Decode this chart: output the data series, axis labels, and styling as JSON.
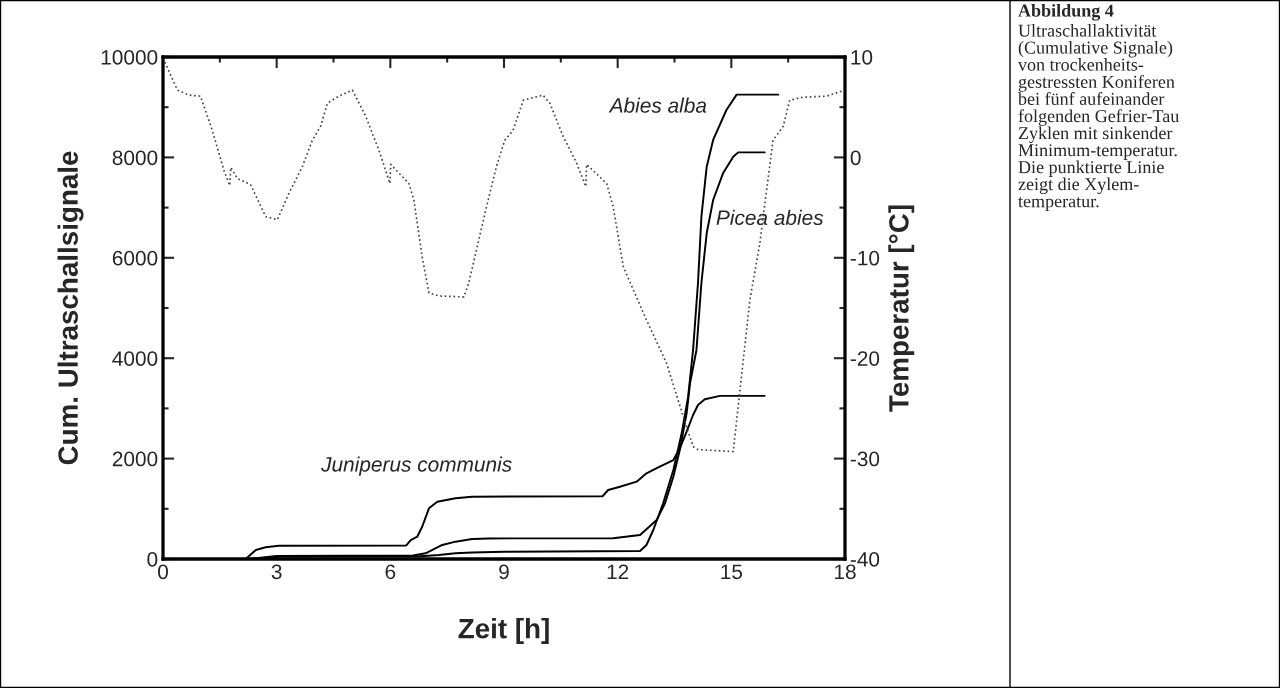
{
  "chart_data": {
    "type": "line",
    "xlabel": "Zeit [h]",
    "ylabel": "Cum. Ultraschallsignale",
    "y2label": "Temperatur [°C]",
    "xlim": [
      0,
      18
    ],
    "xticks": [
      0,
      3,
      6,
      9,
      12,
      15,
      18
    ],
    "ylim": [
      0,
      10000
    ],
    "yticks": [
      0,
      2000,
      4000,
      6000,
      8000,
      10000
    ],
    "y2lim": [
      -40,
      10
    ],
    "y2ticks": [
      -40,
      -30,
      -20,
      -10,
      0,
      10
    ],
    "grid": false,
    "legend": false,
    "line_style": "solid",
    "marker": "none",
    "series": [
      {
        "name": "Abies alba",
        "color": "#000000",
        "x": [
          0,
          2.3,
          3.0,
          6.7,
          7.28,
          7.72,
          8.16,
          9.0,
          12.59,
          12.76,
          12.94,
          13.2,
          13.47,
          13.69,
          13.86,
          13.99,
          14.12,
          14.21,
          14.35,
          14.52,
          14.87,
          15.14,
          16.24
        ],
        "values": [
          0,
          0,
          46,
          50,
          80,
          113,
          130,
          145,
          160,
          279,
          578,
          1110,
          1773,
          2504,
          3233,
          4163,
          5498,
          6819,
          7815,
          8347,
          8944,
          9250,
          9250
        ]
      },
      {
        "name": "Picea abies",
        "color": "#000000",
        "x": [
          0,
          2.3,
          3.0,
          6.6,
          6.93,
          7.37,
          7.72,
          8.16,
          8.6,
          11.88,
          12.59,
          13.03,
          13.25,
          13.47,
          13.64,
          13.82,
          13.91,
          14.08,
          14.21,
          14.35,
          14.52,
          14.78,
          15.05,
          15.18,
          15.88
        ],
        "values": [
          0,
          0,
          60,
          70,
          113,
          279,
          345,
          400,
          410,
          412,
          478,
          777,
          1110,
          1640,
          2171,
          2902,
          3500,
          4163,
          5498,
          6488,
          7151,
          7683,
          8015,
          8100,
          8100
        ]
      },
      {
        "name": "Juniperus communis",
        "color": "#000000",
        "x": [
          0,
          2.18,
          2.45,
          2.71,
          3.06,
          6.42,
          6.54,
          6.71,
          6.84,
          7.02,
          7.24,
          7.72,
          8.16,
          11.6,
          11.75,
          12.06,
          12.5,
          12.76,
          13.11,
          13.47,
          13.64,
          13.82,
          13.99,
          14.12,
          14.3,
          14.7,
          15.88
        ],
        "values": [
          0,
          0,
          179,
          233,
          265,
          270,
          378,
          444,
          643,
          1010,
          1141,
          1209,
          1241,
          1250,
          1375,
          1440,
          1540,
          1707,
          1839,
          1972,
          2205,
          2536,
          2869,
          3068,
          3181,
          3250,
          3250
        ]
      },
      {
        "axis": "y2",
        "color": "#444444",
        "line_style": "dotted",
        "x": [
          0,
          0.38,
          0.69,
          0.99,
          1.3,
          1.61,
          1.76,
          1.79,
          1.96,
          2.31,
          2.71,
          3.02,
          3.32,
          3.68,
          3.94,
          4.16,
          4.34,
          4.64,
          5.0,
          5.35,
          5.7,
          5.99,
          6.01,
          6.49,
          6.62,
          6.84,
          7.02,
          7.28,
          7.94,
          8.07,
          8.54,
          8.8,
          9.02,
          9.24,
          9.51,
          10.03,
          10.21,
          10.56,
          10.92,
          11.16,
          11.18,
          11.71,
          11.88,
          12.15,
          12.76,
          13.29,
          13.73,
          13.99,
          14.12,
          15.05,
          15.49,
          15.75,
          16.1,
          16.37,
          16.54,
          16.89,
          17.51,
          18.0
        ],
        "values": [
          9.9,
          6.7,
          6.2,
          6.1,
          2.7,
          -1.3,
          -2.8,
          -1.0,
          -2.1,
          -2.7,
          -5.9,
          -6.2,
          -3.6,
          -0.9,
          1.7,
          3.1,
          5.4,
          6.1,
          6.7,
          4.1,
          0.7,
          -2.6,
          -0.7,
          -2.6,
          -4.2,
          -9.9,
          -13.5,
          -13.8,
          -13.9,
          -12.5,
          -4.9,
          -0.9,
          1.7,
          2.7,
          5.7,
          6.2,
          5.4,
          2.1,
          -0.6,
          -2.9,
          -0.7,
          -2.6,
          -4.9,
          -10.9,
          -16.2,
          -20.5,
          -25.8,
          -28.8,
          -29.1,
          -29.3,
          -14.2,
          -8.6,
          1.7,
          3.1,
          5.7,
          6.0,
          6.1,
          6.7
        ]
      }
    ],
    "annotations": [
      "Abbildung 4",
      "Ultraschallaktivität\n(Cumulative Signale)\nvon trockenheits-\ngestressten Koniferen\nbei fünf aufeinander\nfolgenden Gefrier-Tau\nZyklen mit sinkender\nMinimum-temperatur.\nDie punktierte Linie\nzeigt die Xylem-\ntemperatur."
    ]
  }
}
